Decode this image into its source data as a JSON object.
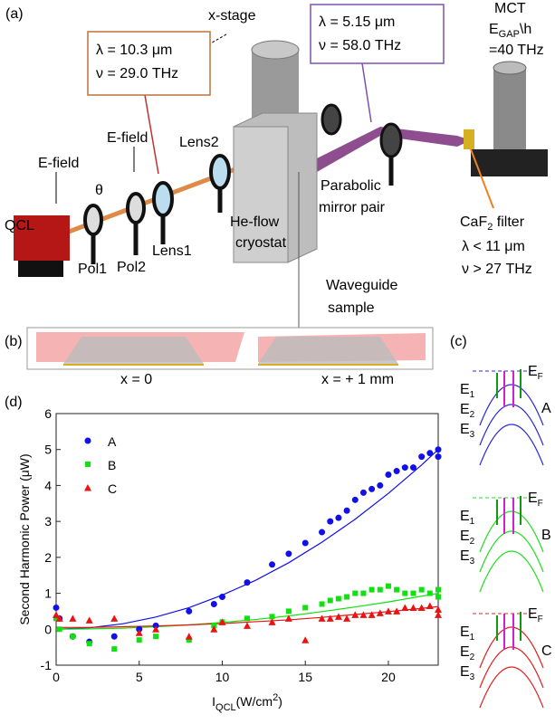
{
  "figure": {
    "panel_a": {
      "label": "(a)",
      "x_stage": "x-stage",
      "pump": {
        "lambda": "λ = 10.3 μm",
        "nu": "ν = 29.0 THz"
      },
      "sh": {
        "lambda": "λ = 5.15 μm",
        "nu": "ν = 58.0 THz"
      },
      "detector": {
        "name": "MCT",
        "gap_main": "E",
        "gap_sub": "GAP",
        "gap_rest": "\\h",
        "gap_value": "=40 THz"
      },
      "efield_1": "E-field",
      "efield_2": "E-field",
      "theta": "θ",
      "qcl": "QCL",
      "pol1": "Pol1",
      "pol2": "Pol2",
      "lens1": "Lens1",
      "lens2": "Lens2",
      "cryostat": [
        "He-flow",
        "cryostat"
      ],
      "mirrors": [
        "Parabolic",
        "mirror pair"
      ],
      "filter": {
        "main": "CaF",
        "sub": "2",
        "rest": " filter",
        "lambda": "λ < 11 μm",
        "nu": "ν > 27 THz"
      },
      "sample": [
        "Waveguide",
        "sample"
      ]
    },
    "panel_b": {
      "label": "(b)",
      "left": "x = 0",
      "right": "x = + 1 mm"
    },
    "panel_c": {
      "label": "(c)",
      "fermi": {
        "main": "E",
        "sub": "F"
      },
      "groups": [
        {
          "name": "A",
          "color": "#2a2ad8",
          "levels": [
            [
              "E",
              "1"
            ],
            [
              "E",
              "2"
            ],
            [
              "E",
              "3"
            ]
          ]
        },
        {
          "name": "B",
          "color": "#22dd22",
          "levels": [
            [
              "E",
              "1"
            ],
            [
              "E",
              "2"
            ],
            [
              "E",
              "3"
            ]
          ]
        },
        {
          "name": "C",
          "color": "#e02020",
          "levels": [
            [
              "E",
              "1"
            ],
            [
              "E",
              "2"
            ],
            [
              "E",
              "3"
            ]
          ]
        }
      ]
    },
    "panel_d": {
      "label": "(d)"
    }
  },
  "chart_data": {
    "type": "scatter",
    "ylabel": "Second Harmonic Power (μW)",
    "xlabel": {
      "main": "I",
      "sub": "QCL",
      "unit": "(W/cm",
      "sup": "2",
      "close": ")"
    },
    "x": [
      0,
      0.2,
      1,
      2,
      3.5,
      5,
      6,
      8,
      9.5,
      10,
      11.5,
      13,
      14,
      15,
      16,
      16.5,
      17,
      17.5,
      18,
      18.5,
      19,
      19.5,
      20,
      20.5,
      21,
      21.5,
      22,
      22.5,
      23,
      23
    ],
    "series": [
      {
        "name": "A",
        "color": "#1010e8",
        "marker": "circle",
        "values": [
          0.6,
          0.3,
          -0.2,
          -0.35,
          -0.2,
          0,
          0.1,
          0.5,
          0.7,
          0.9,
          1.3,
          1.8,
          2.1,
          2.4,
          2.7,
          3.0,
          3.1,
          3.3,
          3.6,
          3.8,
          3.9,
          4.0,
          4.3,
          4.4,
          4.5,
          4.5,
          4.8,
          4.9,
          5.0,
          4.8
        ]
      },
      {
        "name": "B",
        "color": "#11e011",
        "marker": "square",
        "values": [
          0.3,
          0,
          -0.2,
          -0.4,
          -0.55,
          -0.3,
          -0.2,
          -0.3,
          0.1,
          0.2,
          0.3,
          0.35,
          0.5,
          0.6,
          0.7,
          0.8,
          0.85,
          0.9,
          1.0,
          1.0,
          1.1,
          1.1,
          1.2,
          1.1,
          1.0,
          1.0,
          1.1,
          1.0,
          1.1,
          0.9
        ]
      },
      {
        "name": "C",
        "color": "#ee1111",
        "marker": "triangle",
        "values": [
          0.4,
          0.3,
          0.3,
          0.25,
          0.3,
          -0.1,
          0,
          -0.2,
          0,
          0.2,
          0.1,
          0.2,
          0.3,
          -0.3,
          0.3,
          0.3,
          0.35,
          0.3,
          0.4,
          0.4,
          0.4,
          0.45,
          0.5,
          0.5,
          0.6,
          0.6,
          0.6,
          0.65,
          0.55,
          0.4
        ]
      }
    ],
    "fit_x": [
      0,
      2,
      4,
      6,
      8,
      10,
      12,
      14,
      16,
      18,
      20,
      22,
      23
    ],
    "fits": [
      {
        "color": "#1010e8",
        "values": [
          0,
          0.04,
          0.15,
          0.34,
          0.6,
          0.95,
          1.36,
          1.85,
          2.42,
          3.06,
          3.78,
          4.57,
          5.0
        ]
      },
      {
        "color": "#11e011",
        "values": [
          0,
          0.01,
          0.03,
          0.07,
          0.12,
          0.19,
          0.27,
          0.37,
          0.49,
          0.62,
          0.76,
          0.92,
          1.0
        ]
      },
      {
        "color": "#ee1111",
        "values": [
          0.05,
          0.05,
          0.07,
          0.09,
          0.12,
          0.16,
          0.21,
          0.26,
          0.33,
          0.41,
          0.49,
          0.58,
          0.63
        ]
      }
    ],
    "xlim": [
      0,
      23
    ],
    "ylim": [
      -1,
      6
    ],
    "xticks": [
      0,
      5,
      10,
      15,
      20
    ],
    "yticks": [
      -1,
      0,
      1,
      2,
      3,
      4,
      5,
      6
    ],
    "legend": "upper left"
  }
}
